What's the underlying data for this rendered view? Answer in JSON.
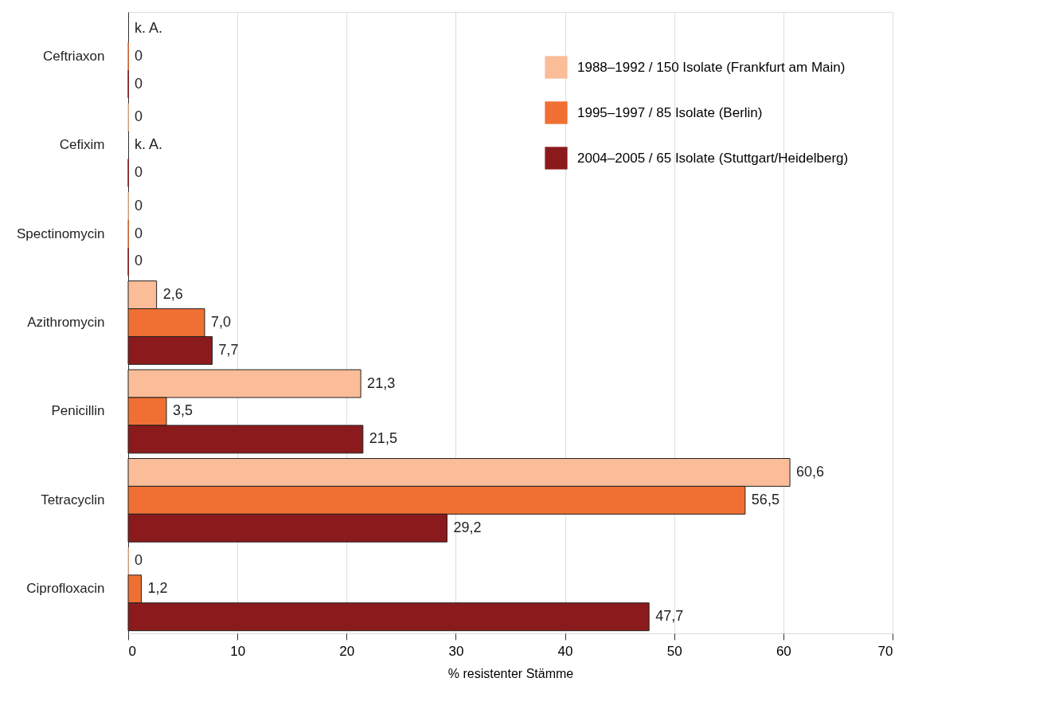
{
  "chart_data": {
    "type": "bar",
    "orientation": "horizontal",
    "xlabel": "% resistenter Stämme",
    "categories": [
      "Ceftriaxon",
      "Cefixim",
      "Spectinomycin",
      "Azithromycin",
      "Penicillin",
      "Tetracyclin",
      "Ciprofloxacin"
    ],
    "series": [
      {
        "name": "1988–1992 / 150 Isolate (Frankfurt am Main)",
        "color": "#fbbc98",
        "values": [
          null,
          0,
          0,
          2.6,
          21.3,
          60.6,
          0
        ],
        "value_labels": [
          "k. A.",
          "0",
          "0",
          "2,6",
          "21,3",
          "60,6",
          "0"
        ]
      },
      {
        "name": "1995–1997 / 85 Isolate (Berlin)",
        "color": "#f07033",
        "values": [
          0,
          null,
          0,
          7.0,
          3.5,
          56.5,
          1.2
        ],
        "value_labels": [
          "0",
          "k. A.",
          "0",
          "7,0",
          "3,5",
          "56,5",
          "1,2"
        ]
      },
      {
        "name": "2004–2005 / 65 Isolate (Stuttgart/Heidelberg)",
        "color": "#8b1a1c",
        "values": [
          0,
          0,
          0,
          7.7,
          21.5,
          29.2,
          47.7
        ],
        "value_labels": [
          "0",
          "0",
          "0",
          "7,7",
          "21,5",
          "29,2",
          "47,7"
        ]
      }
    ],
    "xlim": [
      0,
      70
    ],
    "xticks": [
      0,
      10,
      20,
      30,
      40,
      50,
      60,
      70
    ],
    "grid": "x",
    "legend": "top right"
  }
}
